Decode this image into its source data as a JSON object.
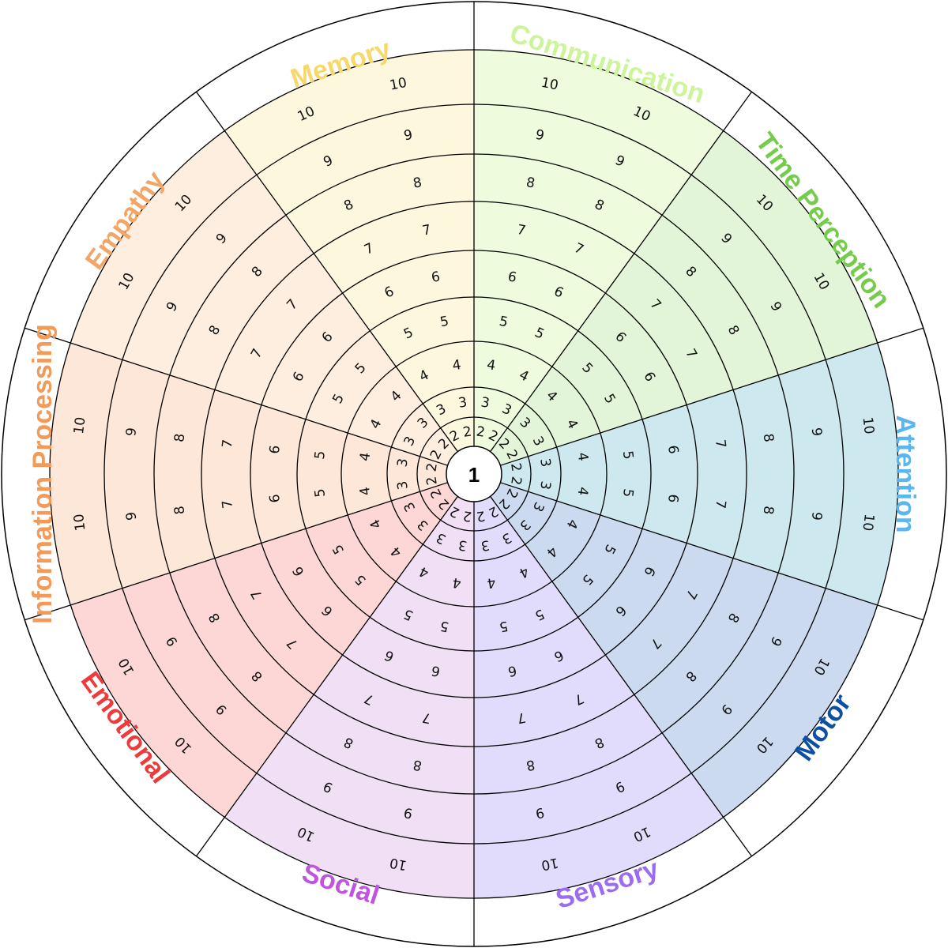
{
  "center_label": "1",
  "levels": [
    "2",
    "3",
    "4",
    "5",
    "6",
    "7",
    "8",
    "9",
    "10"
  ],
  "segments": [
    {
      "label": "Communication",
      "color": "#ccf59a",
      "fill": "#eefbdd",
      "bold": true,
      "levels": 10
    },
    {
      "label": "Time Perception",
      "color": "#74cc4a",
      "fill": "#e3f5d8",
      "bold": true,
      "levels": 10
    },
    {
      "label": "Attention",
      "color": "#5ab6ee",
      "fill": "#cde8ee",
      "bold": false,
      "levels": 10
    },
    {
      "label": "Motor",
      "color": "#0d4fa3",
      "fill": "#cbdaef",
      "bold": true,
      "levels": 10
    },
    {
      "label": "Sensory",
      "color": "#9b6cf0",
      "fill": "#e1dcfb",
      "bold": false,
      "levels": 10
    },
    {
      "label": "Social",
      "color": "#c054e0",
      "fill": "#f0dff5",
      "bold": true,
      "levels": 10
    },
    {
      "label": "Emotional",
      "color": "#ee3a3a",
      "fill": "#fdd7d6",
      "bold": true,
      "levels": 10
    },
    {
      "label": "Information Processing",
      "color": "#f39a58",
      "fill": "#fde7d9",
      "bold": true,
      "levels": 10
    },
    {
      "label": "Empathy",
      "color": "#f3a566",
      "fill": "#fdeedf",
      "bold": true,
      "levels": 10
    },
    {
      "label": "Memory",
      "color": "#f7d86a",
      "fill": "#fdf7dd",
      "bold": true,
      "levels": 10
    }
  ]
}
